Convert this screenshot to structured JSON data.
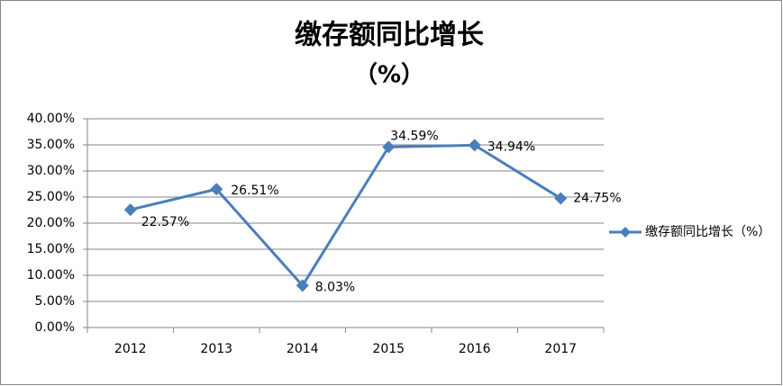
{
  "chart_data": {
    "type": "line",
    "title": "缴存额同比增长",
    "subtitle": "（%）",
    "categories": [
      "2012",
      "2013",
      "2014",
      "2015",
      "2016",
      "2017"
    ],
    "series": [
      {
        "name": "缴存额同比增长（%）",
        "color": "#4a7ebb",
        "values": [
          22.57,
          26.51,
          8.03,
          34.59,
          34.94,
          24.75
        ],
        "value_labels": [
          "22.57%",
          "26.51%",
          "8.03%",
          "34.59%",
          "34.94%",
          "24.75%"
        ]
      }
    ],
    "ylim": [
      0,
      40
    ],
    "yticks": [
      {
        "value": 0,
        "label": "0.00%"
      },
      {
        "value": 5,
        "label": "5.00%"
      },
      {
        "value": 10,
        "label": "10.00%"
      },
      {
        "value": 15,
        "label": "15.00%"
      },
      {
        "value": 20,
        "label": "20.00%"
      },
      {
        "value": 25,
        "label": "25.00%"
      },
      {
        "value": 30,
        "label": "30.00%"
      },
      {
        "value": 35,
        "label": "35.00%"
      },
      {
        "value": 40,
        "label": "40.00%"
      }
    ],
    "grid": true,
    "legend": "right"
  }
}
